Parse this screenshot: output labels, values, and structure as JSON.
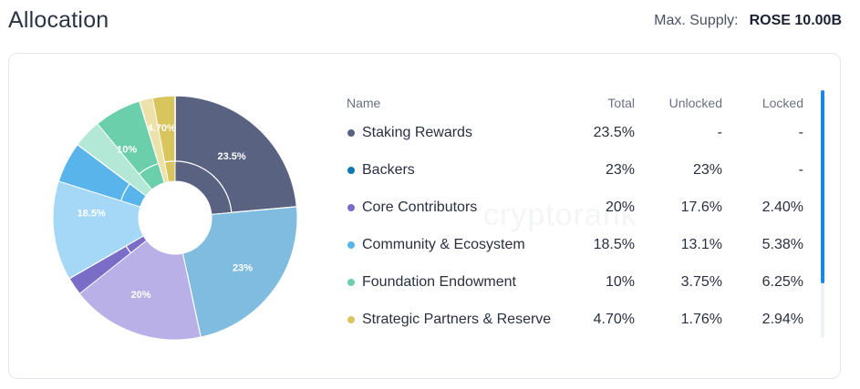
{
  "header": {
    "title": "Allocation",
    "supply_label": "Max. Supply:",
    "supply_value": "ROSE 10.00B"
  },
  "watermark": "cryptorank",
  "table": {
    "columns": [
      "Name",
      "Total",
      "Unlocked",
      "Locked"
    ],
    "rows": [
      {
        "name": "Staking Rewards",
        "total": "23.5%",
        "unlocked": "-",
        "locked": "-",
        "color": "#5a6282"
      },
      {
        "name": "Backers",
        "total": "23%",
        "unlocked": "23%",
        "locked": "-",
        "color": "#0a79b6"
      },
      {
        "name": "Core Contributors",
        "total": "20%",
        "unlocked": "17.6%",
        "locked": "2.40%",
        "color": "#7a6dc8"
      },
      {
        "name": "Community & Ecosystem",
        "total": "18.5%",
        "unlocked": "13.1%",
        "locked": "5.38%",
        "color": "#58b4ea"
      },
      {
        "name": "Foundation Endowment",
        "total": "10%",
        "unlocked": "3.75%",
        "locked": "6.25%",
        "color": "#6ccfac"
      },
      {
        "name": "Strategic Partners & Reserve",
        "total": "4.70%",
        "unlocked": "1.76%",
        "locked": "2.94%",
        "color": "#d9c55e"
      }
    ]
  },
  "chart_data": {
    "type": "pie",
    "donut": true,
    "categories": [
      "Staking Rewards",
      "Backers",
      "Core Contributors",
      "Community & Ecosystem",
      "Foundation Endowment",
      "Strategic Partners & Reserve"
    ],
    "values": [
      23.5,
      23,
      20,
      18.5,
      10,
      4.7
    ],
    "slice_labels": [
      "23.5%",
      "23%",
      "20%",
      "18.5%",
      "10%",
      "4.70%"
    ],
    "unlocked_fraction": [
      0,
      1,
      0.88,
      0.708,
      0.375,
      0.374
    ],
    "colors": [
      "#5a6282",
      "#0a79b6",
      "#7a6dc8",
      "#58b4ea",
      "#6ccfac",
      "#d9c55e"
    ],
    "light_colors": [
      "#a9aec2",
      "#7fbcdf",
      "#b8b0e6",
      "#a5d8f6",
      "#b2e8d5",
      "#ece2a9"
    ]
  },
  "scrollbar": {
    "position": 0
  }
}
